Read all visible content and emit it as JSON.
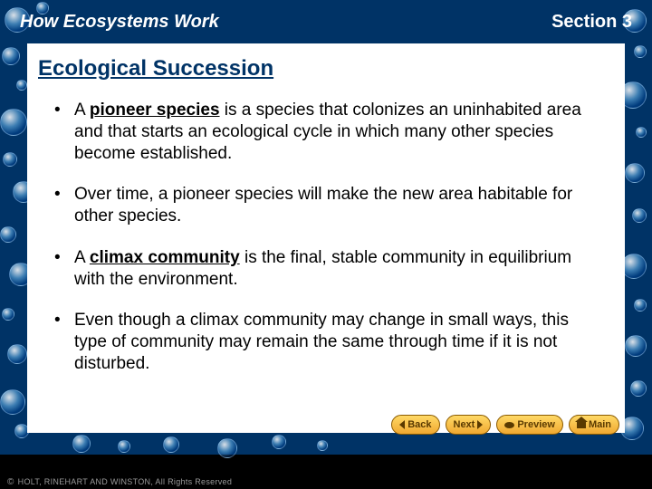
{
  "header": {
    "left": "How Ecosystems Work",
    "right": "Section 3"
  },
  "title": "Ecological Succession",
  "bullets": [
    {
      "pre": "A ",
      "term": "pioneer species",
      "post": " is a species that colonizes an uninhabited area and that starts an ecological cycle in which many other species become established."
    },
    {
      "pre": "Over time, a pioneer species will make the new area habitable for other species.",
      "term": "",
      "post": ""
    },
    {
      "pre": "A ",
      "term": "climax community",
      "post": " is the final, stable community in equilibrium with the environment."
    },
    {
      "pre": "Even though a climax community may change in small ways, this type of community may remain the same through time if it is not disturbed.",
      "term": "",
      "post": ""
    }
  ],
  "nav": {
    "back": "Back",
    "next": "Next",
    "preview": "Preview",
    "main": "Main"
  },
  "footer": "HOLT, RINEHART AND WINSTON, All Rights Reserved",
  "bubbles": [
    {
      "l": 5,
      "t": 8,
      "s": 28
    },
    {
      "l": 40,
      "t": 2,
      "s": 14
    },
    {
      "l": 2,
      "t": 52,
      "s": 20
    },
    {
      "l": 18,
      "t": 88,
      "s": 12
    },
    {
      "l": 0,
      "t": 120,
      "s": 30
    },
    {
      "l": 3,
      "t": 168,
      "s": 16
    },
    {
      "l": 14,
      "t": 200,
      "s": 24
    },
    {
      "l": 0,
      "t": 250,
      "s": 18
    },
    {
      "l": 10,
      "t": 290,
      "s": 26
    },
    {
      "l": 2,
      "t": 340,
      "s": 14
    },
    {
      "l": 8,
      "t": 380,
      "s": 22
    },
    {
      "l": 0,
      "t": 430,
      "s": 28
    },
    {
      "l": 16,
      "t": 468,
      "s": 16
    },
    {
      "l": 688,
      "t": 10,
      "s": 26
    },
    {
      "l": 700,
      "t": 50,
      "s": 14
    },
    {
      "l": 684,
      "t": 90,
      "s": 30
    },
    {
      "l": 702,
      "t": 140,
      "s": 12
    },
    {
      "l": 690,
      "t": 180,
      "s": 22
    },
    {
      "l": 698,
      "t": 230,
      "s": 16
    },
    {
      "l": 686,
      "t": 280,
      "s": 28
    },
    {
      "l": 700,
      "t": 330,
      "s": 14
    },
    {
      "l": 690,
      "t": 370,
      "s": 24
    },
    {
      "l": 696,
      "t": 420,
      "s": 18
    },
    {
      "l": 685,
      "t": 460,
      "s": 26
    },
    {
      "l": 80,
      "t": 480,
      "s": 20
    },
    {
      "l": 130,
      "t": 486,
      "s": 14
    },
    {
      "l": 180,
      "t": 482,
      "s": 18
    },
    {
      "l": 240,
      "t": 484,
      "s": 22
    },
    {
      "l": 300,
      "t": 480,
      "s": 16
    },
    {
      "l": 350,
      "t": 486,
      "s": 12
    }
  ]
}
